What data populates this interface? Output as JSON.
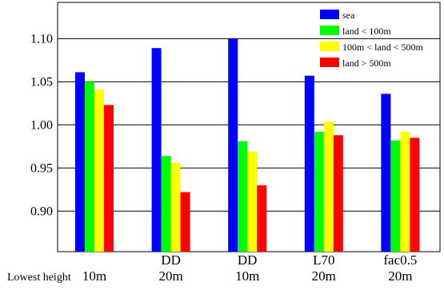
{
  "chart_data": {
    "type": "bar",
    "categories": [
      [
        "",
        "10m"
      ],
      [
        "DD",
        "20m"
      ],
      [
        "DD",
        "10m"
      ],
      [
        "L70",
        "20m"
      ],
      [
        "fac0.5",
        "20m"
      ]
    ],
    "row_label": "Lowest height",
    "series": [
      {
        "name": "sea",
        "color": "#0000ff",
        "values": [
          1.061,
          1.089,
          1.1,
          1.057,
          1.036
        ]
      },
      {
        "name": "land < 100m",
        "color": "#00ff00",
        "values": [
          1.05,
          0.964,
          0.981,
          0.992,
          0.982
        ]
      },
      {
        "name": "100m < land < 500m",
        "color": "#ffff00",
        "values": [
          1.041,
          0.956,
          0.969,
          1.004,
          0.992
        ]
      },
      {
        "name": "land > 500m",
        "color": "#ff0000",
        "values": [
          1.023,
          0.922,
          0.93,
          0.988,
          0.985
        ]
      }
    ],
    "yticks": [
      "0.90",
      "0.95",
      "1.00",
      "1.05",
      "1.10"
    ],
    "ylim": [
      0.853,
      1.142
    ],
    "grid": true,
    "legend_position": "top-right"
  }
}
